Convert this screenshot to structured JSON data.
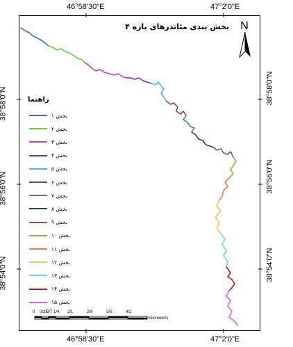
{
  "title": "بخش بندی مئاندرهای بازه ۴",
  "north_label": "N",
  "coords": {
    "top_left": "46°58'30\"E",
    "top_right": "47°2'0\"E",
    "bottom_left": "46°58'30\"E",
    "bottom_right": "47°2'0\"E",
    "left_upper": "38°58'0\"N",
    "left_middle": "38°56'0\"N",
    "left_lower": "38°54'0\"N",
    "right_upper": "38°58'0\"N",
    "right_middle": "38°56'0\"N",
    "right_lower": "38°54'0\"N"
  },
  "legend": {
    "title": "راهنما",
    "items": [
      {
        "label": "بخش ۱",
        "color": "#3b6fd1"
      },
      {
        "label": "بخش ۲",
        "color": "#5fd13b"
      },
      {
        "label": "بخش ۳",
        "color": "#d13bb0"
      },
      {
        "label": "بخش ۴",
        "color": "#7a2fb0"
      },
      {
        "label": "بخش ۵",
        "color": "#4fb8e0"
      },
      {
        "label": "بخش ۶",
        "color": "#8a3f5a"
      },
      {
        "label": "بخش ۷",
        "color": "#4f8a4f"
      },
      {
        "label": "بخش ۸",
        "color": "#22407a"
      },
      {
        "label": "بخش ۹",
        "color": "#8a4a7a"
      },
      {
        "label": "بخش ۱۰",
        "color": "#7bc23b"
      },
      {
        "label": "بخش ۱۱",
        "color": "#e8804a"
      },
      {
        "label": "بخش ۱۲",
        "color": "#e8c35a"
      },
      {
        "label": "بخش ۱۳",
        "color": "#5fe0e0"
      },
      {
        "label": "بخش ۱۴",
        "color": "#c81414"
      },
      {
        "label": "بخش ۱۵",
        "color": "#e05fe0"
      }
    ]
  },
  "scale_bar": {
    "ticks": [
      "0",
      "0/35",
      "0/7",
      "1/4",
      "2/1",
      "2/8",
      "3/5",
      "4/2"
    ],
    "unit": "Kilometers"
  }
}
